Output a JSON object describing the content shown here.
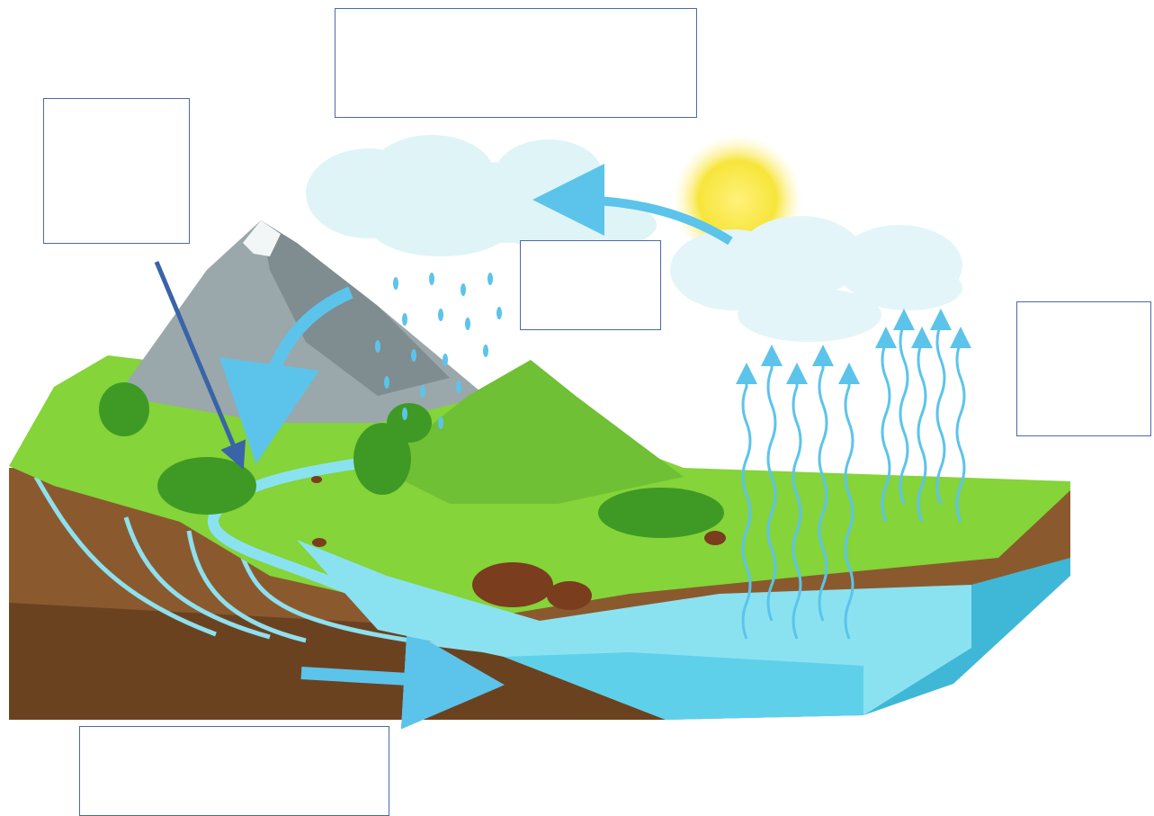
{
  "diagram": {
    "label_boxes": [
      {
        "id": "top-center",
        "text": ""
      },
      {
        "id": "left-top",
        "text": ""
      },
      {
        "id": "center-under-clouds",
        "text": ""
      },
      {
        "id": "right",
        "text": ""
      },
      {
        "id": "bottom-left",
        "text": ""
      }
    ],
    "colors": {
      "sky_cloud": "#dff4f7",
      "sun": "#f7e53a",
      "grass": "#84d43a",
      "dark_grass": "#5aa52a",
      "soil": "#8a5a2e",
      "deep_soil": "#6b4220",
      "water": "#5fd0ea",
      "deep_water": "#3fb8d8",
      "mountain": "#9aa8ab",
      "arrow_light": "#5cc4ea",
      "pointer_arrow": "#3a63a8"
    }
  }
}
